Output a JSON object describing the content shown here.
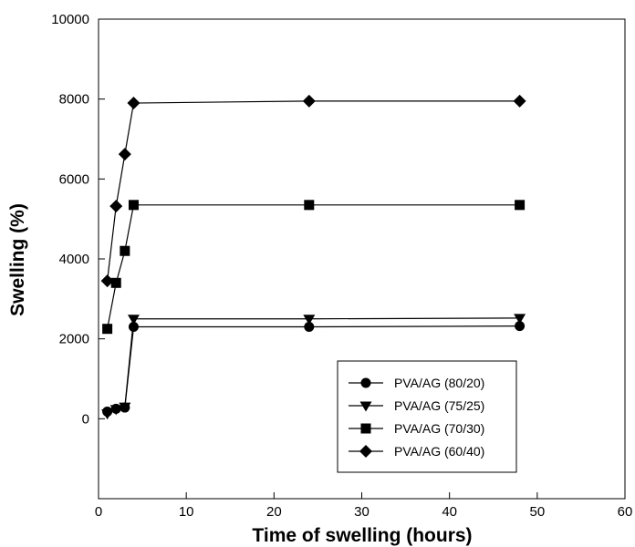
{
  "chart_data": {
    "type": "line",
    "title": "",
    "xlabel": "Time of swelling (hours)",
    "ylabel": "Swelling (%)",
    "xlim": [
      0,
      60
    ],
    "ylim": [
      -2000,
      10000
    ],
    "xticks": [
      0,
      10,
      20,
      30,
      40,
      50,
      60
    ],
    "yticks": [
      0,
      2000,
      4000,
      6000,
      8000,
      10000
    ],
    "grid": false,
    "legend_position": "bottom-right",
    "series": [
      {
        "name": "PVA/AG (80/20)",
        "marker": "circle",
        "x": [
          1,
          2,
          3,
          4,
          24,
          48
        ],
        "y": [
          180,
          250,
          280,
          2300,
          2300,
          2320
        ]
      },
      {
        "name": "PVA/AG (75/25)",
        "marker": "triangle-down",
        "x": [
          1,
          2,
          3,
          4,
          24,
          48
        ],
        "y": [
          130,
          240,
          300,
          2500,
          2500,
          2520
        ]
      },
      {
        "name": "PVA/AG (70/30)",
        "marker": "square",
        "x": [
          1,
          2,
          3,
          4,
          24,
          48
        ],
        "y": [
          2250,
          3400,
          4200,
          5350,
          5350,
          5350
        ]
      },
      {
        "name": "PVA/AG (60/40)",
        "marker": "diamond",
        "x": [
          1,
          2,
          3,
          4,
          24,
          48
        ],
        "y": [
          3450,
          5320,
          6620,
          7900,
          7950,
          7950
        ]
      }
    ]
  }
}
